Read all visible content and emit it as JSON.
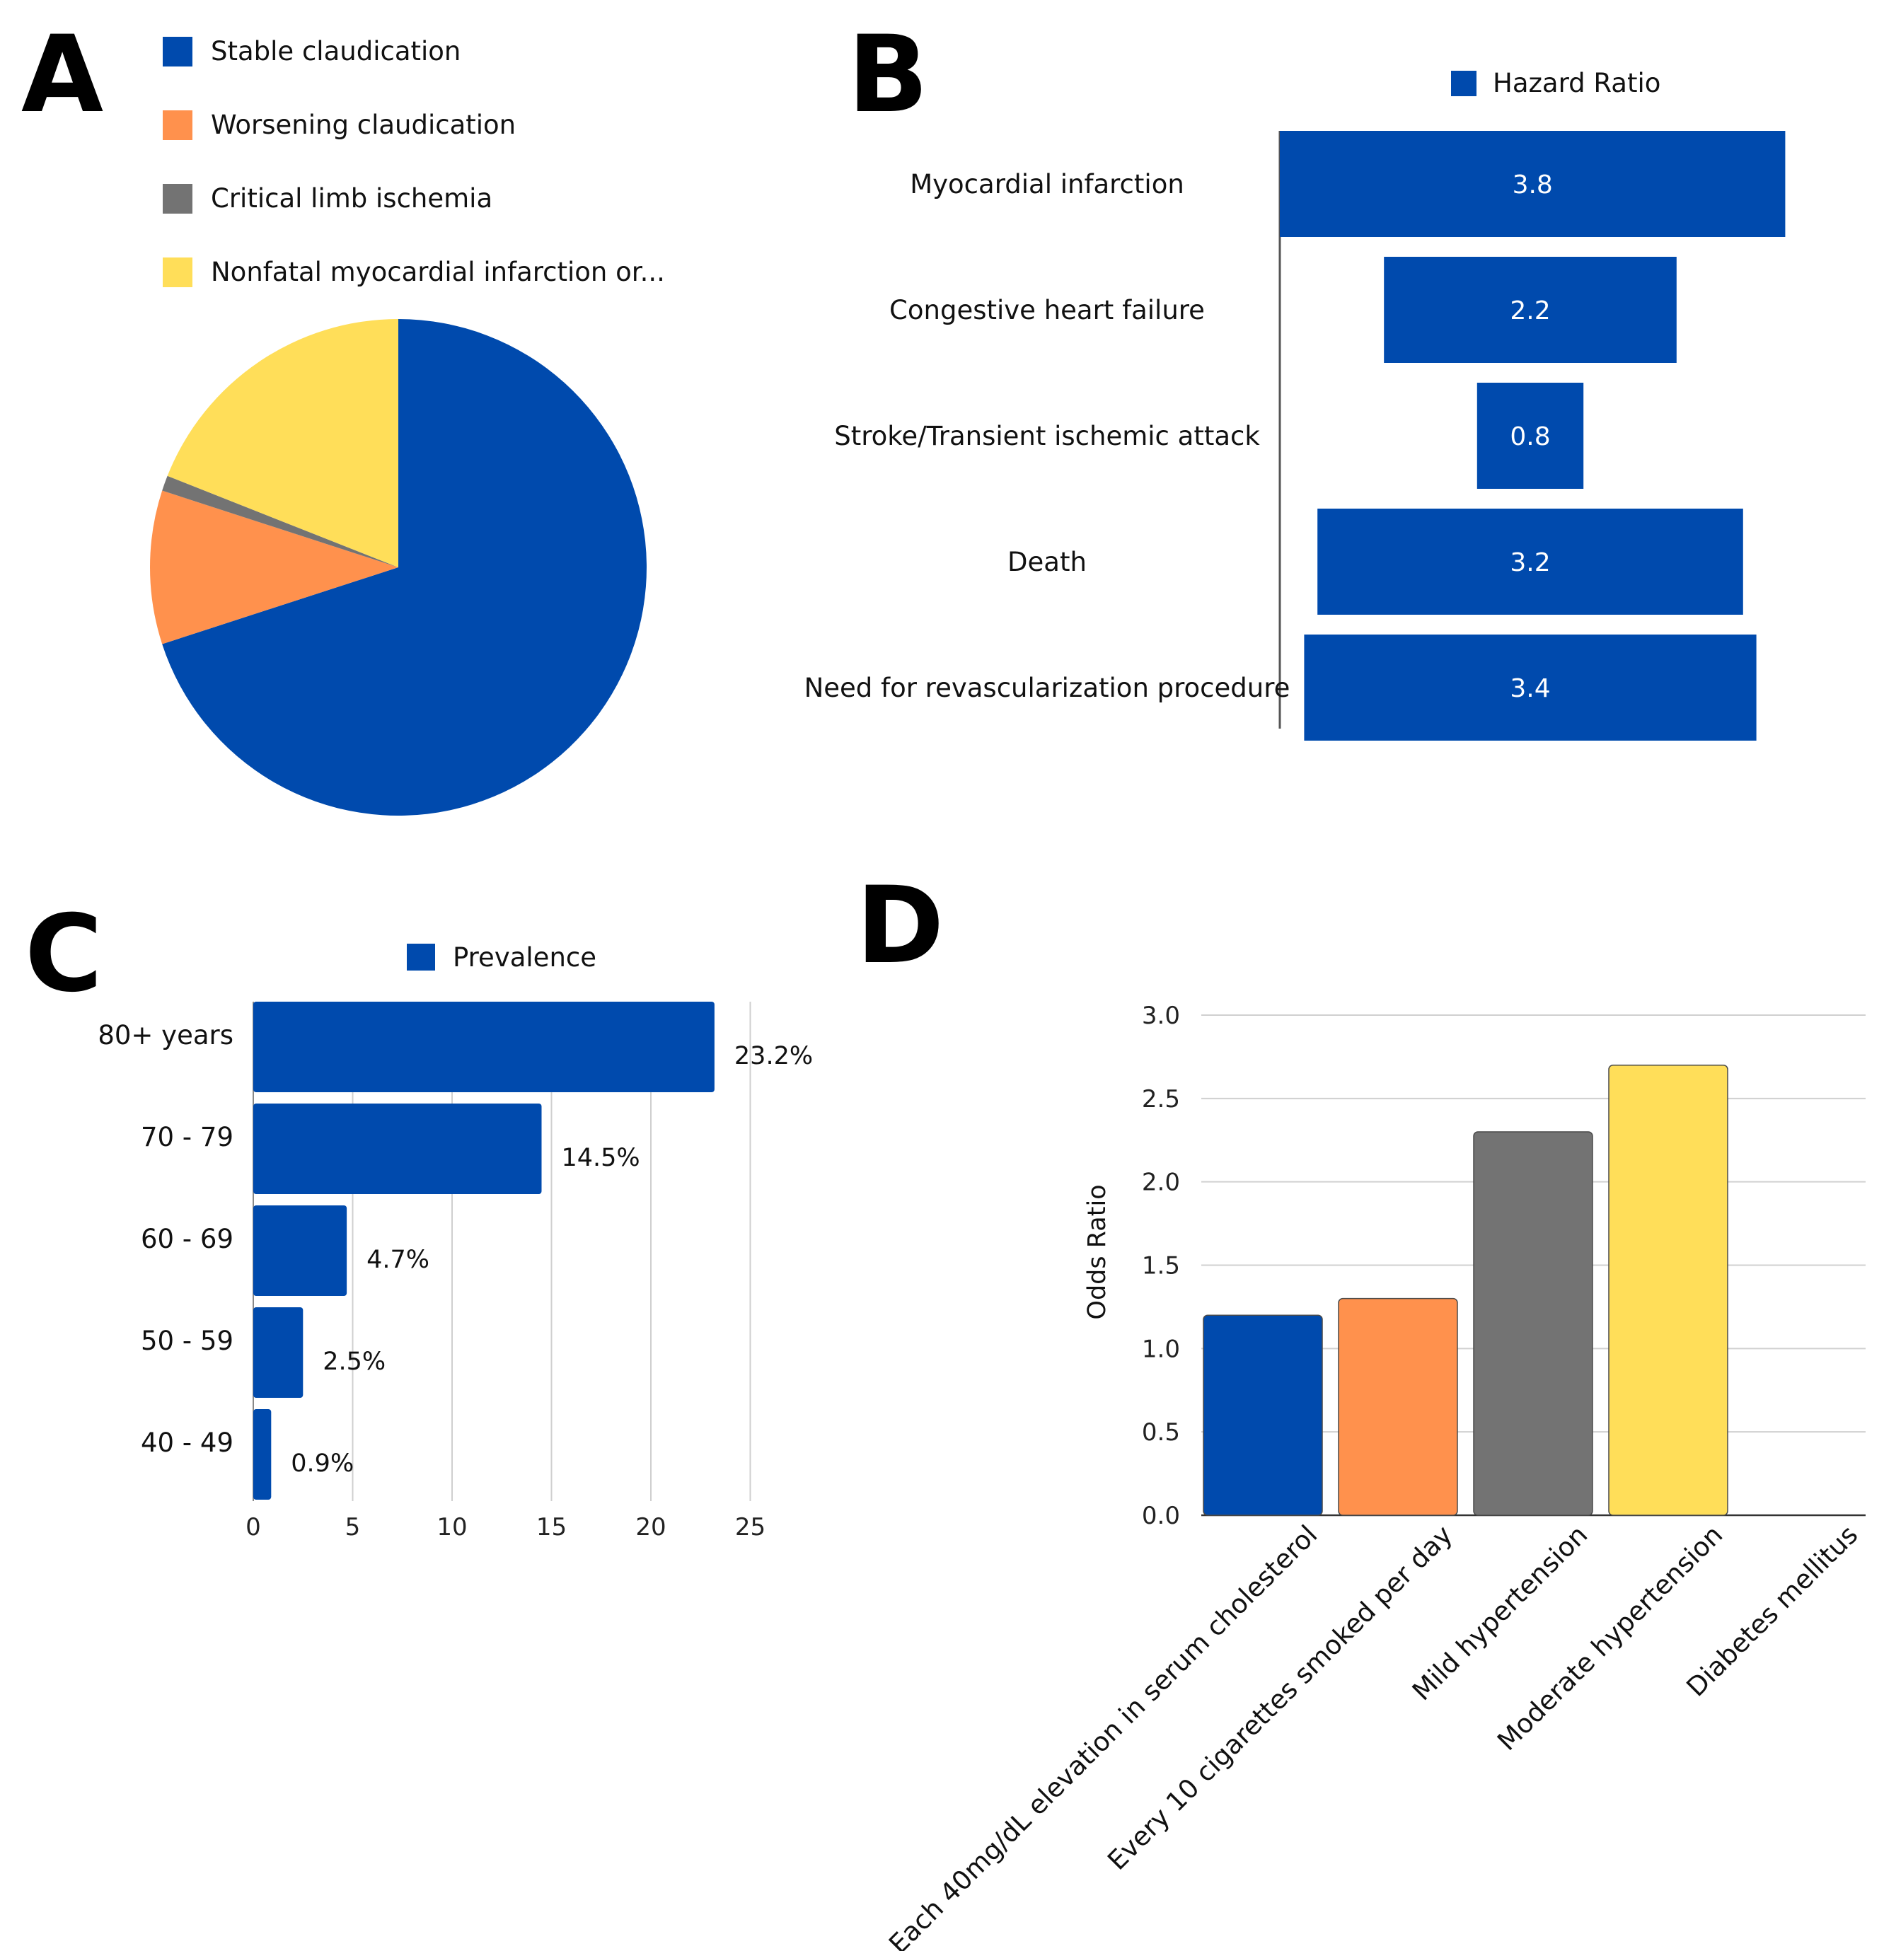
{
  "panels": [
    "A",
    "B",
    "C",
    "D"
  ],
  "colors": {
    "blue": "#004aad",
    "orange": "#ff914d",
    "gray": "#737373",
    "yellow": "#ffde59"
  },
  "chart_data": [
    {
      "type": "pie",
      "panel": "A",
      "title": "",
      "legend_position": "top",
      "slices": [
        {
          "label": "Stable claudication",
          "value": 70,
          "color": "#004aad"
        },
        {
          "label": "Worsening claudication",
          "value": 10,
          "color": "#ff914d"
        },
        {
          "label": "Critical limb ischemia",
          "value": 1,
          "color": "#737373"
        },
        {
          "label": "Nonfatal myocardial infarction or...",
          "value": 19,
          "color": "#ffde59"
        }
      ]
    },
    {
      "type": "bar",
      "panel": "B",
      "orientation": "horizontal",
      "legend": [
        "Hazard Ratio"
      ],
      "legend_position": "top",
      "categories": [
        "Myocardial infarction",
        "Congestive heart failure",
        "Stroke/Transient ischemic attack",
        "Death",
        "Need for revascularization procedure"
      ],
      "values": [
        3.8,
        2.2,
        0.8,
        3.2,
        3.4
      ],
      "value_labels": [
        "3.8",
        "2.2",
        "0.8",
        "3.2",
        "3.4"
      ],
      "color": "#004aad"
    },
    {
      "type": "bar",
      "panel": "C",
      "orientation": "horizontal",
      "legend": [
        "Prevalence"
      ],
      "legend_position": "top",
      "categories": [
        "80+ years",
        "70 - 79",
        "60 - 69",
        "50 - 59",
        "40 - 49"
      ],
      "values": [
        23.2,
        14.5,
        4.7,
        2.5,
        0.9
      ],
      "value_labels": [
        "23.2%",
        "14.5%",
        "4.7%",
        "2.5%",
        "0.9%"
      ],
      "xticks": [
        "0",
        "5",
        "10",
        "15",
        "20",
        "25"
      ],
      "xlim": [
        0,
        25
      ],
      "grid": true,
      "color": "#004aad"
    },
    {
      "type": "bar",
      "panel": "D",
      "orientation": "vertical",
      "ylabel": "Odds Ratio",
      "categories": [
        "Each 40mg/dL elevation in serum cholesterol",
        "Every 10 cigarettes smoked per day",
        "Mild hypertension",
        "Moderate hypertension",
        "Diabetes mellitus"
      ],
      "values": [
        1.2,
        1.3,
        2.3,
        2.7,
        0
      ],
      "bar_colors": [
        "#004aad",
        "#ff914d",
        "#737373",
        "#ffde59",
        "#ffde59"
      ],
      "yticks": [
        "0.0",
        "0.5",
        "1.0",
        "1.5",
        "2.0",
        "2.5",
        "3.0"
      ],
      "ylim": [
        0,
        3
      ],
      "grid": true
    }
  ]
}
